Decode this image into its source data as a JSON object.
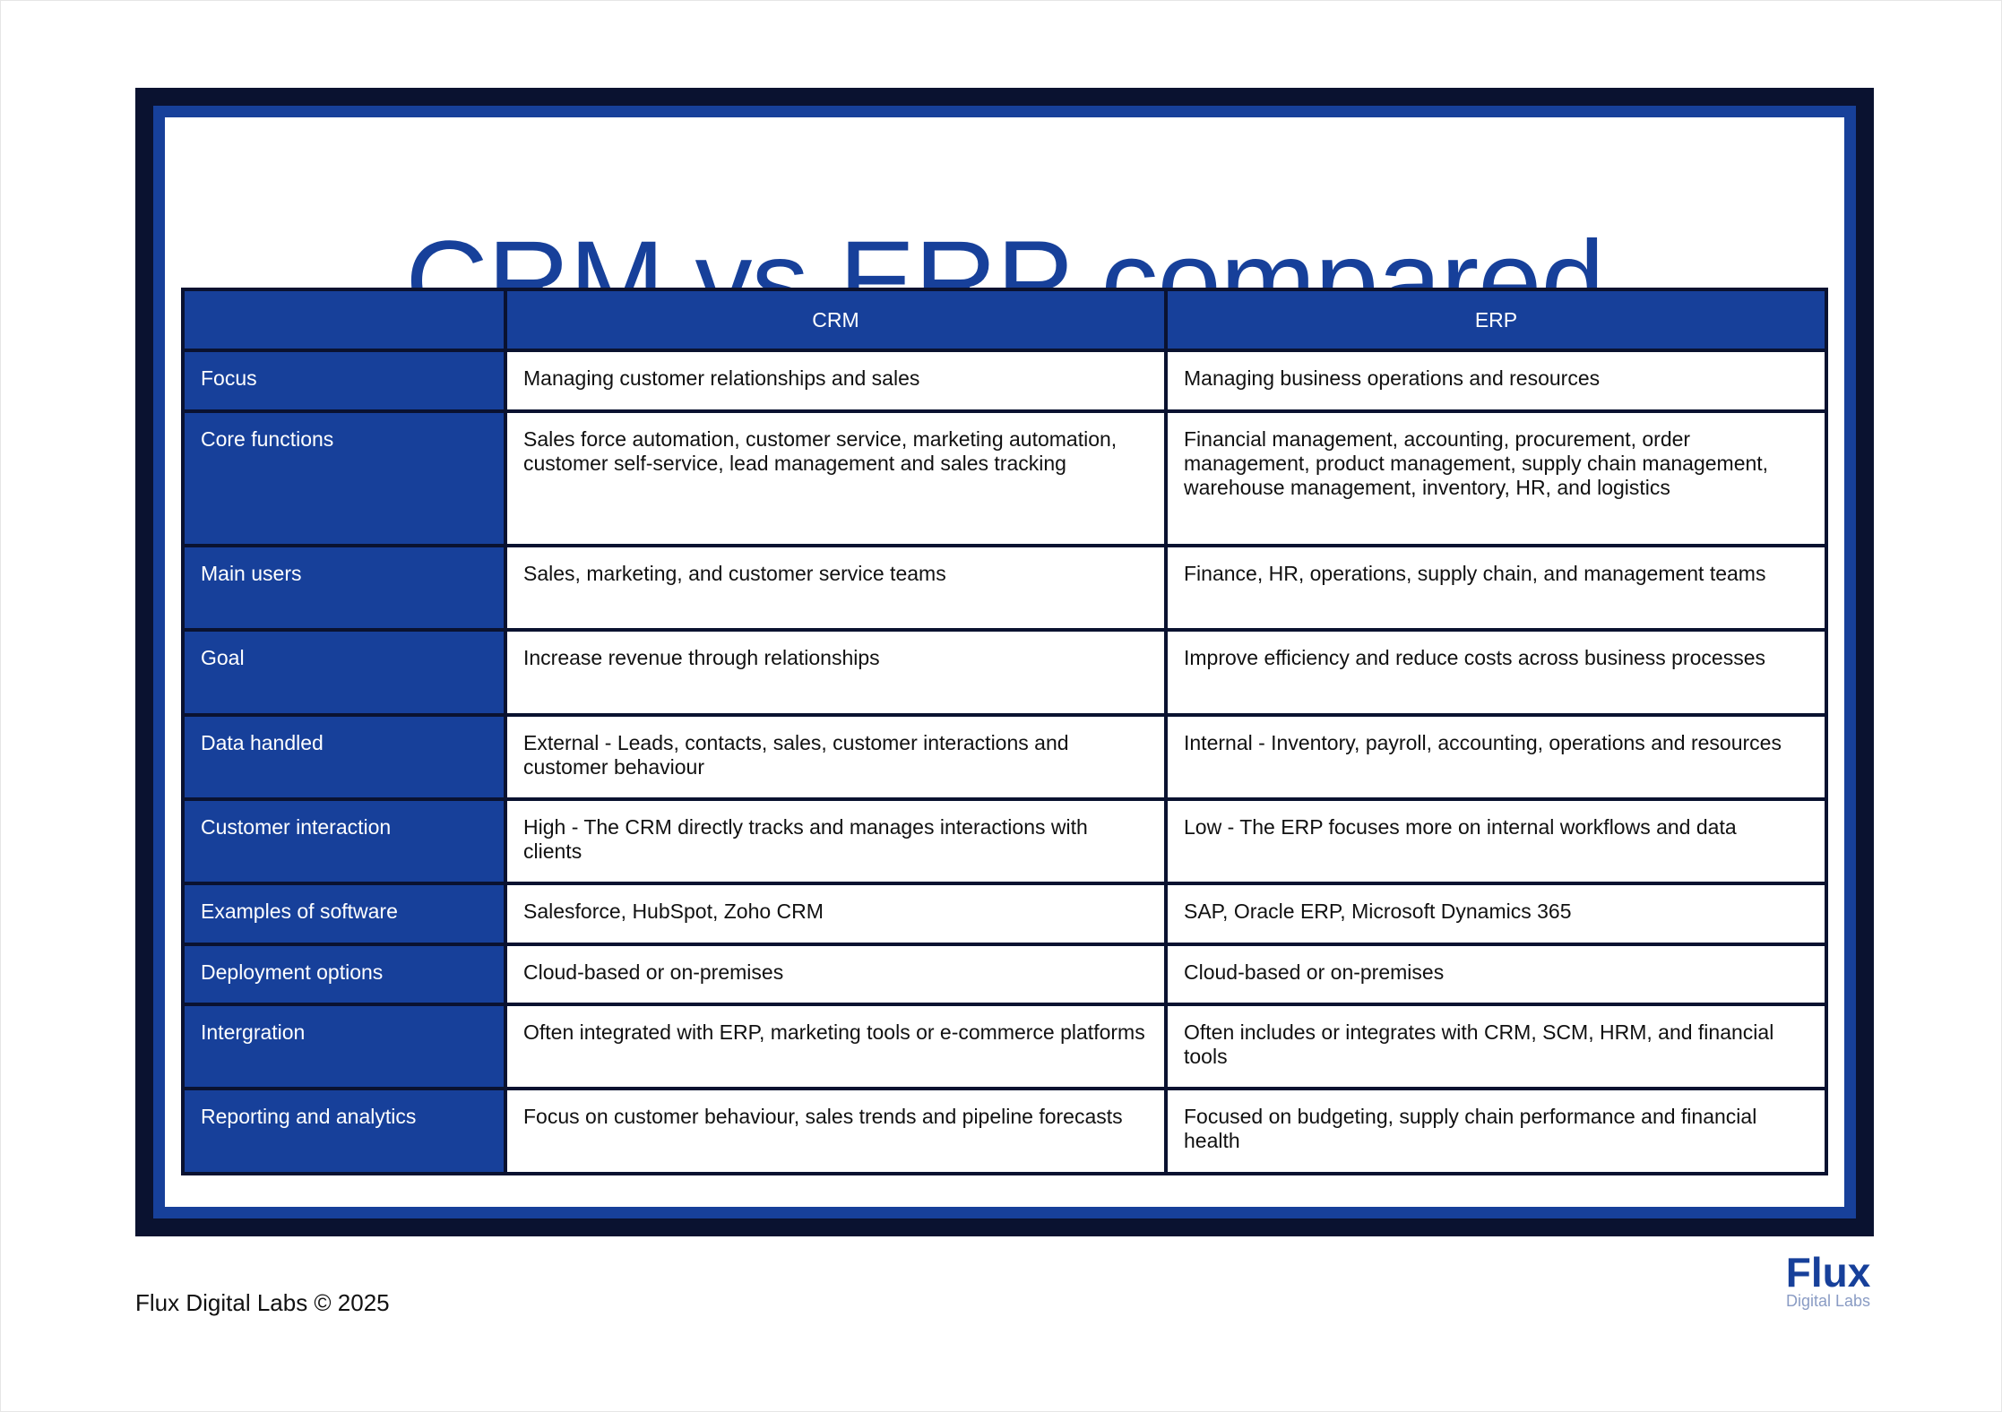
{
  "title": "CRM vs ERP compared",
  "table": {
    "columns": [
      "",
      "CRM",
      "ERP"
    ],
    "rows": [
      {
        "label": "Focus",
        "crm": "Managing customer relationships and sales",
        "erp": "Managing business operations and resources"
      },
      {
        "label": "Core functions",
        "crm": "Sales force automation, customer service, marketing automation, customer self-service, lead management and sales tracking",
        "erp": "Financial management, accounting, procurement, order management, product management, supply chain management, warehouse management, inventory, HR, and logistics"
      },
      {
        "label": "Main users",
        "crm": "Sales, marketing, and customer service teams",
        "erp": "Finance, HR, operations, supply chain, and management teams"
      },
      {
        "label": "Goal",
        "crm": "Increase revenue through relationships",
        "erp": "Improve efficiency and reduce costs across business processes"
      },
      {
        "label": "Data handled",
        "crm": "External - Leads, contacts, sales, customer interactions and customer behaviour",
        "erp": "Internal - Inventory, payroll, accounting, operations and resources"
      },
      {
        "label": "Customer interaction",
        "crm": "High - The CRM directly tracks and manages interactions with clients",
        "erp": "Low - The ERP focuses more on internal workflows and data"
      },
      {
        "label": "Examples of software",
        "crm": "Salesforce, HubSpot, Zoho CRM",
        "erp": "SAP, Oracle ERP, Microsoft Dynamics 365"
      },
      {
        "label": "Deployment options",
        "crm": "Cloud-based or on-premises",
        "erp": "Cloud-based or on-premises"
      },
      {
        "label": "Intergration",
        "crm": "Often integrated with ERP, marketing tools or e-commerce platforms",
        "erp": "Often includes or integrates with CRM, SCM, HRM, and financial tools"
      },
      {
        "label": "Reporting and analytics",
        "crm": "Focus on customer behaviour, sales trends and pipeline forecasts",
        "erp": "Focused on budgeting, supply chain performance and financial health"
      }
    ]
  },
  "footer": {
    "copyright": "Flux Digital Labs © 2025"
  },
  "logo": {
    "main": "Flux",
    "sub": "Digital Labs"
  },
  "colors": {
    "brand_blue": "#17409a",
    "frame_dark": "#0a1230",
    "logo_sub": "#8a9cc4"
  }
}
